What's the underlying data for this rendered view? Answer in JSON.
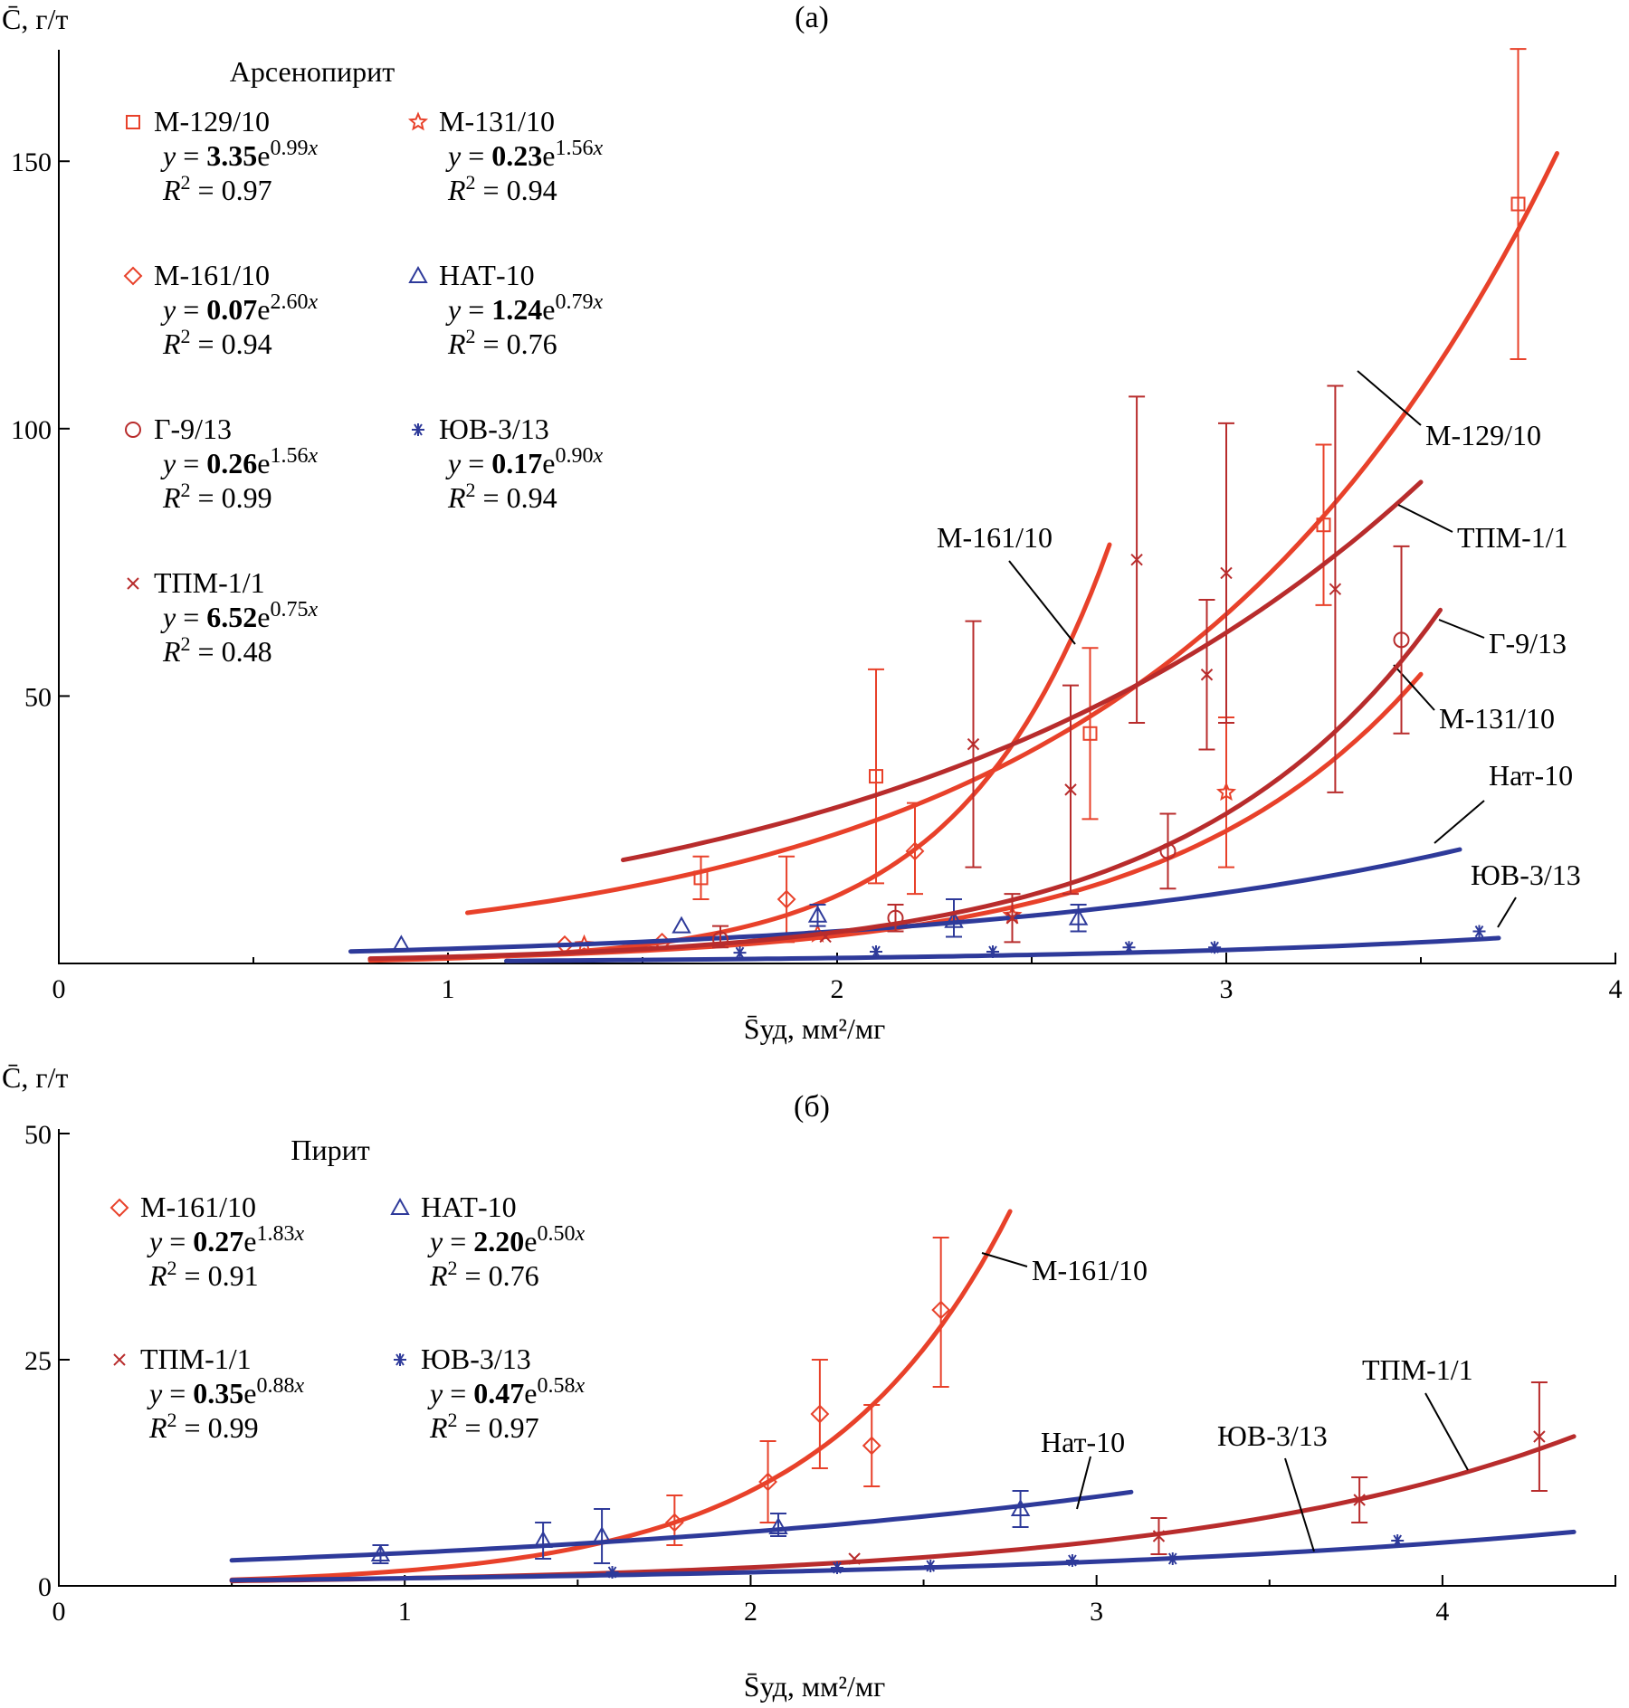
{
  "chart_data": [
    {
      "panel_label": "(a)",
      "type": "scatter",
      "y_axis_label": "C̄, г/т",
      "x_axis_label": "S̄уд, мм²/мг",
      "xlim": [
        0,
        4
      ],
      "ylim": [
        0,
        170
      ],
      "x_ticks": [
        "0",
        "1",
        "2",
        "3",
        "4"
      ],
      "y_ticks": [
        "50",
        "100",
        "150"
      ],
      "legend_title": "Арсенопирит",
      "series": [
        {
          "name": "М-129/10",
          "marker": "square",
          "color": "#e8412a",
          "fit": {
            "a": 3.35,
            "b": 0.99,
            "R2": "0.97",
            "a_text": "3.35",
            "b_text": "0.99"
          },
          "curve_range": [
            1.05,
            3.85
          ],
          "curve_label": "М-129/10",
          "points": [
            {
              "x": 1.65,
              "y": 16,
              "lo": 12,
              "hi": 20
            },
            {
              "x": 2.1,
              "y": 35,
              "lo": 15,
              "hi": 55
            },
            {
              "x": 2.65,
              "y": 43,
              "lo": 27,
              "hi": 59
            },
            {
              "x": 3.25,
              "y": 82,
              "lo": 67,
              "hi": 97
            },
            {
              "x": 3.75,
              "y": 142,
              "lo": 113,
              "hi": 171
            }
          ]
        },
        {
          "name": "М-131/10",
          "marker": "star",
          "color": "#e8412a",
          "fit": {
            "a": 0.23,
            "b": 1.56,
            "R2": "0.94",
            "a_text": "0.23",
            "b_text": "1.56"
          },
          "curve_range": [
            0.8,
            3.5
          ],
          "curve_label": "М-131/10",
          "points": [
            {
              "x": 1.35,
              "y": 3.5
            },
            {
              "x": 1.95,
              "y": 5.5
            },
            {
              "x": 2.45,
              "y": 9
            },
            {
              "x": 3.0,
              "y": 32,
              "lo": 18,
              "hi": 46
            }
          ]
        },
        {
          "name": "М-161/10",
          "marker": "diamond",
          "color": "#e8412a",
          "fit": {
            "a": 0.07,
            "b": 2.6,
            "R2": "0.94",
            "a_text": "0.07",
            "b_text": "2.60"
          },
          "curve_range": [
            0.8,
            2.7
          ],
          "curve_label": "М-161/10",
          "points": [
            {
              "x": 1.3,
              "y": 3.5
            },
            {
              "x": 1.55,
              "y": 4
            },
            {
              "x": 1.87,
              "y": 12,
              "lo": 4,
              "hi": 20
            },
            {
              "x": 2.2,
              "y": 21,
              "lo": 13,
              "hi": 30
            }
          ]
        },
        {
          "name": "НАТ-10",
          "marker": "triangle",
          "color": "#2e3a9a",
          "fit": {
            "a": 1.24,
            "b": 0.79,
            "R2": "0.76",
            "a_text": "1.24",
            "b_text": "0.79"
          },
          "curve_range": [
            0.75,
            3.6
          ],
          "curve_label": "Нат-10",
          "points": [
            {
              "x": 0.88,
              "y": 3.5
            },
            {
              "x": 1.6,
              "y": 7
            },
            {
              "x": 1.95,
              "y": 9,
              "lo": 7,
              "hi": 11
            },
            {
              "x": 2.3,
              "y": 8,
              "lo": 5,
              "hi": 12
            },
            {
              "x": 2.62,
              "y": 8.5,
              "lo": 6,
              "hi": 11
            }
          ]
        },
        {
          "name": "Г-9/13",
          "marker": "circle",
          "color": "#b82c2c",
          "fit": {
            "a": 0.26,
            "b": 1.56,
            "R2": "0.99",
            "a_text": "0.26",
            "b_text": "1.56"
          },
          "curve_range": [
            0.8,
            3.55
          ],
          "curve_label": "Г-9/13",
          "points": [
            {
              "x": 1.7,
              "y": 4.5,
              "lo": 3,
              "hi": 7
            },
            {
              "x": 2.15,
              "y": 8.5,
              "lo": 6,
              "hi": 11
            },
            {
              "x": 2.85,
              "y": 21,
              "lo": 14,
              "hi": 28
            },
            {
              "x": 3.45,
              "y": 60.5,
              "lo": 43,
              "hi": 78
            }
          ]
        },
        {
          "name": "ЮВ-3/13",
          "marker": "asterisk",
          "color": "#2e3a9a",
          "fit": {
            "a": 0.17,
            "b": 0.9,
            "R2": "0.94",
            "a_text": "0.17",
            "b_text": "0.90"
          },
          "curve_range": [
            1.15,
            3.7
          ],
          "curve_label": "ЮВ-3/13",
          "points": [
            {
              "x": 1.75,
              "y": 2
            },
            {
              "x": 2.1,
              "y": 2.2
            },
            {
              "x": 2.4,
              "y": 2.2
            },
            {
              "x": 2.75,
              "y": 3
            },
            {
              "x": 2.97,
              "y": 3
            },
            {
              "x": 3.65,
              "y": 6
            }
          ]
        },
        {
          "name": "ТПМ-1/1",
          "marker": "x",
          "color": "#b82c2c",
          "fit": {
            "a": 6.52,
            "b": 0.75,
            "R2": "0.48",
            "a_text": "6.52",
            "b_text": "0.75"
          },
          "curve_range": [
            1.45,
            3.5
          ],
          "curve_label": "ТПМ-1/1",
          "points": [
            {
              "x": 1.97,
              "y": 5
            },
            {
              "x": 2.35,
              "y": 41,
              "lo": 18,
              "hi": 64
            },
            {
              "x": 2.45,
              "y": 8.5,
              "lo": 4,
              "hi": 13
            },
            {
              "x": 2.6,
              "y": 32.5,
              "lo": 13,
              "hi": 52
            },
            {
              "x": 2.77,
              "y": 75.5,
              "lo": 45,
              "hi": 106
            },
            {
              "x": 2.95,
              "y": 54,
              "lo": 40,
              "hi": 68
            },
            {
              "x": 3.0,
              "y": 73,
              "lo": 45,
              "hi": 101
            },
            {
              "x": 3.28,
              "y": 70,
              "lo": 32,
              "hi": 108
            }
          ]
        }
      ]
    },
    {
      "panel_label": "(б)",
      "type": "scatter",
      "y_axis_label": "C̄, г/т",
      "x_axis_label": "S̄уд, мм²/мг",
      "xlim": [
        0,
        4.5
      ],
      "ylim": [
        0,
        50
      ],
      "x_ticks": [
        "0",
        "1",
        "2",
        "3",
        "4"
      ],
      "y_ticks": [
        "0",
        "25",
        "50"
      ],
      "legend_title": "Пирит",
      "series": [
        {
          "name": "М-161/10",
          "marker": "diamond",
          "color": "#e8412a",
          "fit": {
            "a": 0.27,
            "b": 1.83,
            "R2": "0.91",
            "a_text": "0.27",
            "b_text": "1.83"
          },
          "curve_range": [
            0.5,
            2.75
          ],
          "curve_label": "М-161/10",
          "points": [
            {
              "x": 1.78,
              "y": 7,
              "lo": 4.5,
              "hi": 10
            },
            {
              "x": 2.05,
              "y": 11.5,
              "lo": 7,
              "hi": 16
            },
            {
              "x": 2.2,
              "y": 19,
              "lo": 13,
              "hi": 25
            },
            {
              "x": 2.35,
              "y": 15.5,
              "lo": 11,
              "hi": 20
            },
            {
              "x": 2.55,
              "y": 30.5,
              "lo": 22,
              "hi": 38.5
            }
          ]
        },
        {
          "name": "НАТ-10",
          "marker": "triangle",
          "color": "#2e3a9a",
          "fit": {
            "a": 2.2,
            "b": 0.5,
            "R2": "0.76",
            "a_text": "2.20",
            "b_text": "0.50"
          },
          "curve_range": [
            0.5,
            3.1
          ],
          "curve_label": "Нат-10",
          "points": [
            {
              "x": 0.93,
              "y": 3.5,
              "lo": 2.5,
              "hi": 4.5
            },
            {
              "x": 1.4,
              "y": 5,
              "lo": 3,
              "hi": 7
            },
            {
              "x": 1.57,
              "y": 5.5,
              "lo": 2.5,
              "hi": 8.5
            },
            {
              "x": 2.08,
              "y": 6.5,
              "lo": 5.5,
              "hi": 8
            },
            {
              "x": 2.78,
              "y": 8.5,
              "lo": 6.5,
              "hi": 10.5
            }
          ]
        },
        {
          "name": "ТПМ-1/1",
          "marker": "x",
          "color": "#b82c2c",
          "fit": {
            "a": 0.35,
            "b": 0.88,
            "R2": "0.99",
            "a_text": "0.35",
            "b_text": "0.88"
          },
          "curve_range": [
            0.5,
            4.38
          ],
          "curve_label": "ТПМ-1/1",
          "points": [
            {
              "x": 2.3,
              "y": 3
            },
            {
              "x": 3.18,
              "y": 5.5,
              "lo": 3.5,
              "hi": 7.5
            },
            {
              "x": 3.76,
              "y": 9.5,
              "lo": 7,
              "hi": 12
            },
            {
              "x": 4.28,
              "y": 16.5,
              "lo": 10.5,
              "hi": 22.5
            }
          ]
        },
        {
          "name": "ЮВ-3/13",
          "marker": "asterisk",
          "color": "#2e3a9a",
          "fit": {
            "a": 0.47,
            "b": 0.58,
            "R2": "0.97",
            "a_text": "0.47",
            "b_text": "0.58"
          },
          "curve_range": [
            0.5,
            4.38
          ],
          "curve_label": "ЮВ-3/13",
          "points": [
            {
              "x": 1.6,
              "y": 1.5
            },
            {
              "x": 2.25,
              "y": 2
            },
            {
              "x": 2.52,
              "y": 2.2
            },
            {
              "x": 2.93,
              "y": 2.8
            },
            {
              "x": 3.22,
              "y": 3
            },
            {
              "x": 3.87,
              "y": 5
            }
          ]
        }
      ]
    }
  ]
}
